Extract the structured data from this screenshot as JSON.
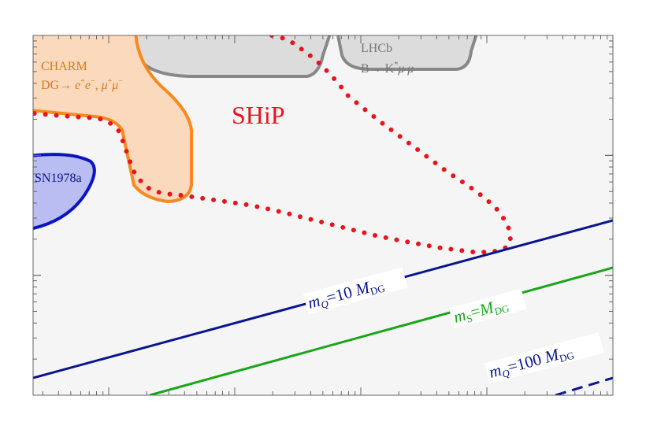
{
  "labels": {
    "charm": {
      "title": "CHARM",
      "process": [
        "DG→ ",
        "e",
        "+",
        "e",
        "−",
        ", ",
        "μ",
        "+",
        "μ",
        "−"
      ]
    },
    "lhcb": {
      "title": "LHCb",
      "process": [
        "B→ K",
        "*",
        "μ μ"
      ]
    },
    "ship": "SHiP",
    "sn": "SN1978a",
    "lines": [
      {
        "parts": [
          "m",
          "Q",
          "=10 ",
          "M",
          "DG"
        ]
      },
      {
        "parts": [
          "m",
          "S",
          "=",
          "M",
          "DG"
        ]
      },
      {
        "parts": [
          "m",
          "Q",
          "=100 ",
          "M",
          "DG"
        ]
      }
    ]
  }
}
